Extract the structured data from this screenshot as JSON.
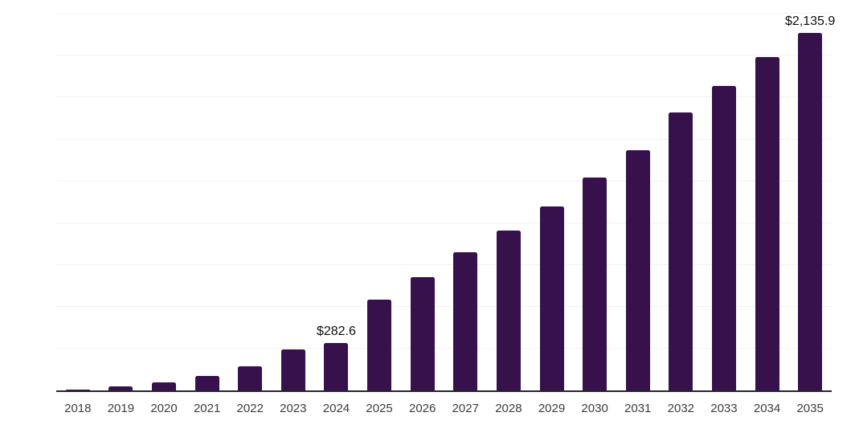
{
  "chart_data": {
    "type": "bar",
    "categories": [
      "2018",
      "2019",
      "2020",
      "2021",
      "2022",
      "2023",
      "2024",
      "2025",
      "2026",
      "2027",
      "2028",
      "2029",
      "2030",
      "2031",
      "2032",
      "2033",
      "2034",
      "2035"
    ],
    "values": [
      7,
      25,
      50,
      88,
      144,
      243,
      282.6,
      545,
      678,
      824,
      955,
      1100,
      1272,
      1434,
      1660,
      1820,
      1990,
      2135.9
    ],
    "annotations": [
      {
        "category": "2024",
        "text": "$282.6"
      },
      {
        "category": "2035",
        "text": "$2,135.9"
      }
    ],
    "title": "",
    "xlabel": "",
    "ylabel": "",
    "ylim": [
      0,
      2250
    ],
    "gridline_step": 250,
    "grid": "horizontal-only",
    "legend": "none",
    "y_axis_labels": "hidden",
    "colors": {
      "bar": "#36114B",
      "gridline": "#f2f2f2",
      "axis_line": "#28252c",
      "tick_label": "#3d3d3d",
      "annotation": "#0d0d0d",
      "background": "#ffffff"
    }
  }
}
